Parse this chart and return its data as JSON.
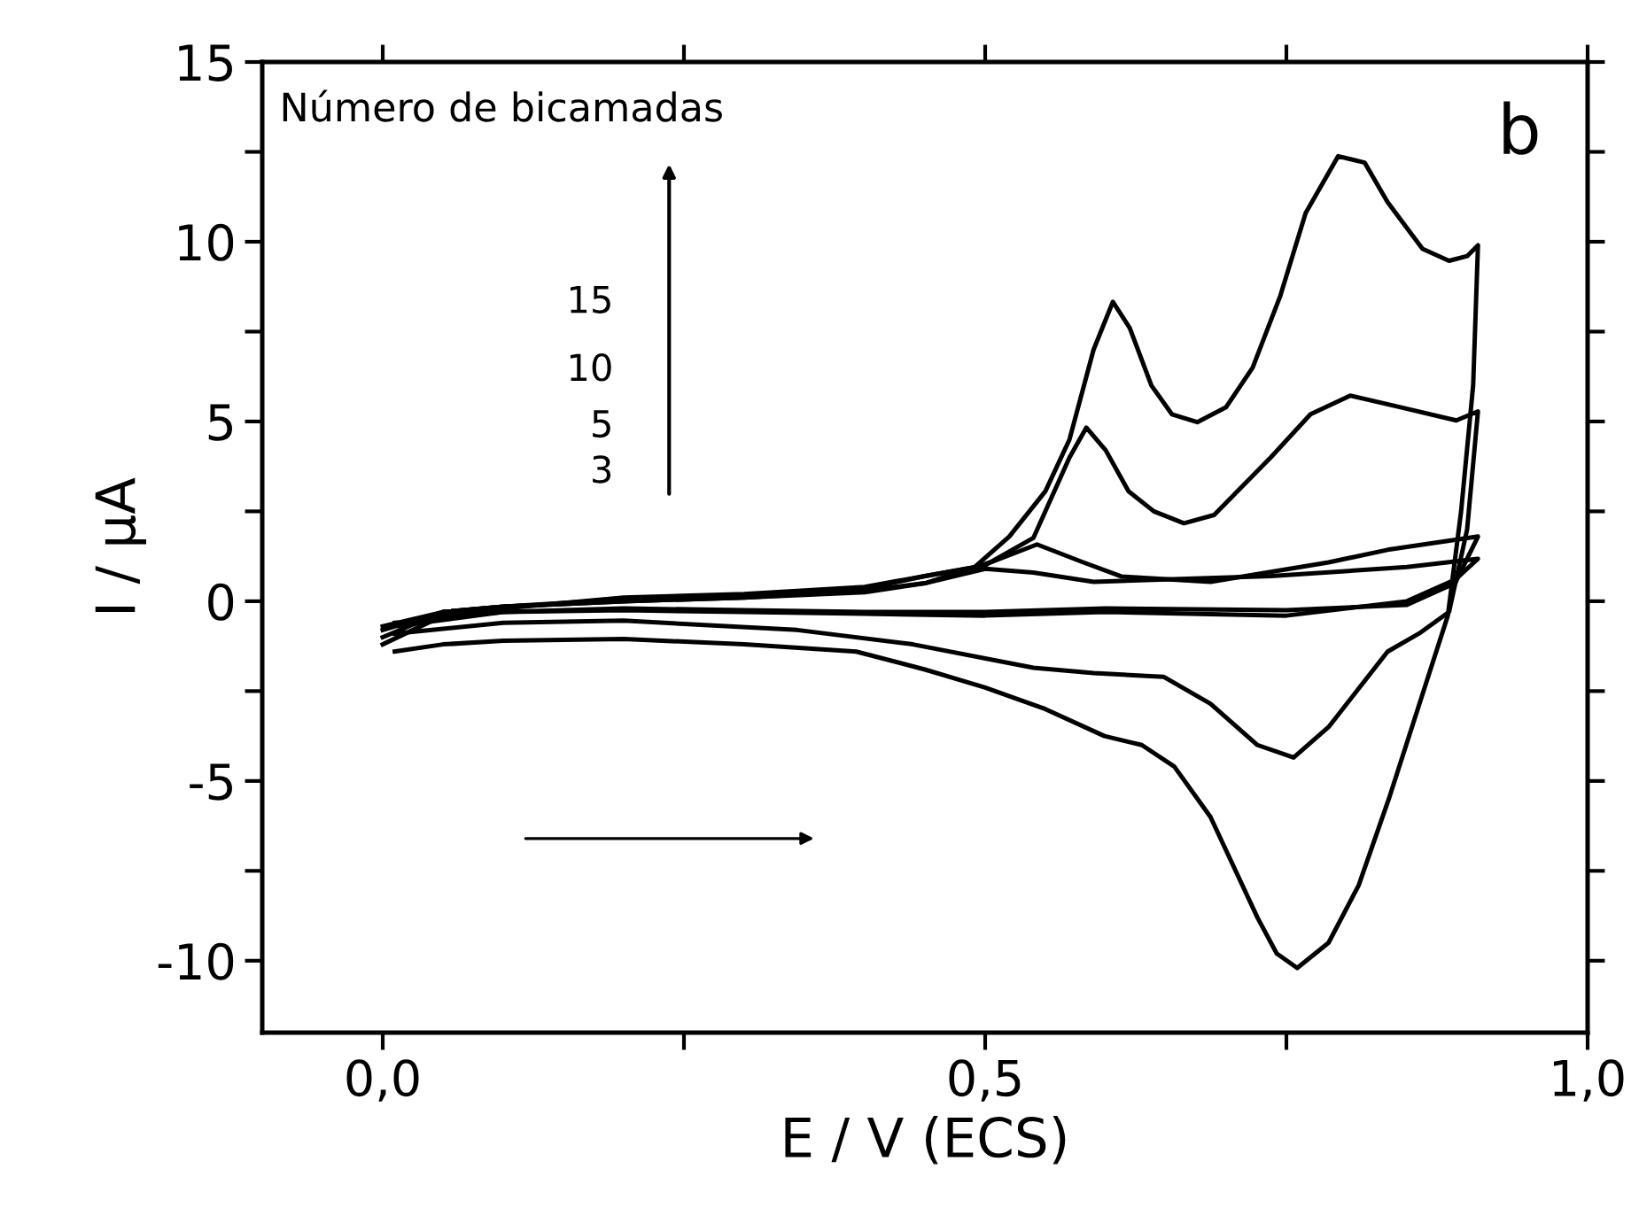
{
  "chart_data": {
    "type": "line",
    "xlabel": "E / V (ECS)",
    "ylabel": "I / μA",
    "annotations": [
      "Número de bicamadas",
      "15",
      "10",
      "5",
      "3",
      "b"
    ],
    "xlim": [
      -0.1,
      1.0
    ],
    "ylim": [
      -12,
      15
    ],
    "xticks": [
      {
        "value": 0,
        "label": "0,0"
      },
      {
        "value": 0.25,
        "label": null
      },
      {
        "value": 0.5,
        "label": "0,5"
      },
      {
        "value": 0.75,
        "label": null
      },
      {
        "value": 1.0,
        "label": "1,0"
      }
    ],
    "yticks": [
      {
        "value": -10,
        "label": "-10"
      },
      {
        "value": -7.5,
        "label": null
      },
      {
        "value": -5,
        "label": "-5"
      },
      {
        "value": -2.5,
        "label": null
      },
      0,
      {
        "value": 2.5,
        "label": null
      },
      5,
      {
        "value": 7.5,
        "label": null
      },
      10,
      {
        "value": 12.5,
        "label": null
      },
      15
    ],
    "grid": false,
    "marker": "none",
    "line_style": "solid",
    "series": [
      {
        "color": "#000000",
        "x": [
          0,
          0.05,
          0.1,
          0.2,
          0.3,
          0.4,
          0.45,
          0.5,
          0.54,
          0.59,
          0.737,
          0.85,
          0.909,
          0.89,
          0.85,
          0.75,
          0.6,
          0.5,
          0.4,
          0.3,
          0.2,
          0.1,
          0.01
        ],
        "values": [
          -0.7,
          -0.3,
          -0.15,
          0.0,
          0.1,
          0.25,
          0.5,
          0.9,
          0.8,
          0.54,
          0.7,
          0.95,
          1.18,
          0.6,
          0.0,
          -0.4,
          -0.3,
          -0.4,
          -0.35,
          -0.3,
          -0.25,
          -0.3,
          -0.6
        ]
      },
      {
        "color": "#000000",
        "x": [
          0,
          0.05,
          0.1,
          0.2,
          0.3,
          0.4,
          0.45,
          0.506,
          0.543,
          0.58,
          0.613,
          0.687,
          0.785,
          0.834,
          0.909,
          0.89,
          0.85,
          0.75,
          0.6,
          0.5,
          0.4,
          0.3,
          0.2,
          0.1,
          0.01
        ],
        "values": [
          -0.8,
          -0.3,
          -0.15,
          0.0,
          0.1,
          0.3,
          0.5,
          1.1,
          1.58,
          1.1,
          0.69,
          0.54,
          1.08,
          1.43,
          1.8,
          0.5,
          -0.1,
          -0.25,
          -0.2,
          -0.3,
          -0.3,
          -0.25,
          -0.2,
          -0.3,
          -0.7
        ]
      },
      {
        "color": "#000000",
        "x": [
          0,
          0.05,
          0.1,
          0.2,
          0.3,
          0.4,
          0.45,
          0.5,
          0.54,
          0.57,
          0.584,
          0.6,
          0.619,
          0.64,
          0.665,
          0.69,
          0.737,
          0.77,
          0.803,
          0.844,
          0.891,
          0.909,
          0.9,
          0.885,
          0.86,
          0.834,
          0.785,
          0.756,
          0.726,
          0.687,
          0.648,
          0.59,
          0.54,
          0.44,
          0.344,
          0.2,
          0.1,
          0.01
        ],
        "values": [
          -1.0,
          -0.3,
          -0.15,
          0.05,
          0.15,
          0.35,
          0.7,
          1.0,
          1.76,
          4.0,
          4.83,
          4.2,
          3.06,
          2.5,
          2.17,
          2.4,
          4.0,
          5.2,
          5.72,
          5.4,
          5.03,
          5.28,
          2.0,
          -0.3,
          -0.9,
          -1.4,
          -3.5,
          -4.35,
          -4.0,
          -2.85,
          -2.1,
          -2.0,
          -1.85,
          -1.2,
          -0.8,
          -0.54,
          -0.6,
          -0.9
        ]
      },
      {
        "color": "#000000",
        "x": [
          0,
          0.05,
          0.1,
          0.2,
          0.3,
          0.4,
          0.45,
          0.491,
          0.52,
          0.55,
          0.57,
          0.59,
          0.606,
          0.62,
          0.638,
          0.655,
          0.676,
          0.7,
          0.722,
          0.745,
          0.766,
          0.793,
          0.815,
          0.834,
          0.863,
          0.885,
          0.9,
          0.909,
          0.905,
          0.895,
          0.884,
          0.859,
          0.835,
          0.81,
          0.785,
          0.759,
          0.742,
          0.726,
          0.687,
          0.657,
          0.63,
          0.599,
          0.55,
          0.5,
          0.45,
          0.393,
          0.3,
          0.2,
          0.1,
          0.05,
          0.01
        ],
        "values": [
          -1.2,
          -0.4,
          -0.2,
          0.1,
          0.2,
          0.4,
          0.7,
          0.94,
          1.8,
          3.06,
          4.5,
          7.0,
          8.33,
          7.6,
          6.0,
          5.2,
          4.98,
          5.4,
          6.5,
          8.5,
          10.8,
          12.38,
          12.2,
          11.1,
          9.8,
          9.47,
          9.6,
          9.9,
          6.0,
          2.5,
          -0.4,
          -3.0,
          -5.5,
          -7.9,
          -9.5,
          -10.2,
          -9.8,
          -8.8,
          -6.0,
          -4.6,
          -4.0,
          -3.75,
          -3.0,
          -2.4,
          -1.9,
          -1.4,
          -1.2,
          -1.05,
          -1.1,
          -1.2,
          -1.4
        ]
      }
    ]
  }
}
